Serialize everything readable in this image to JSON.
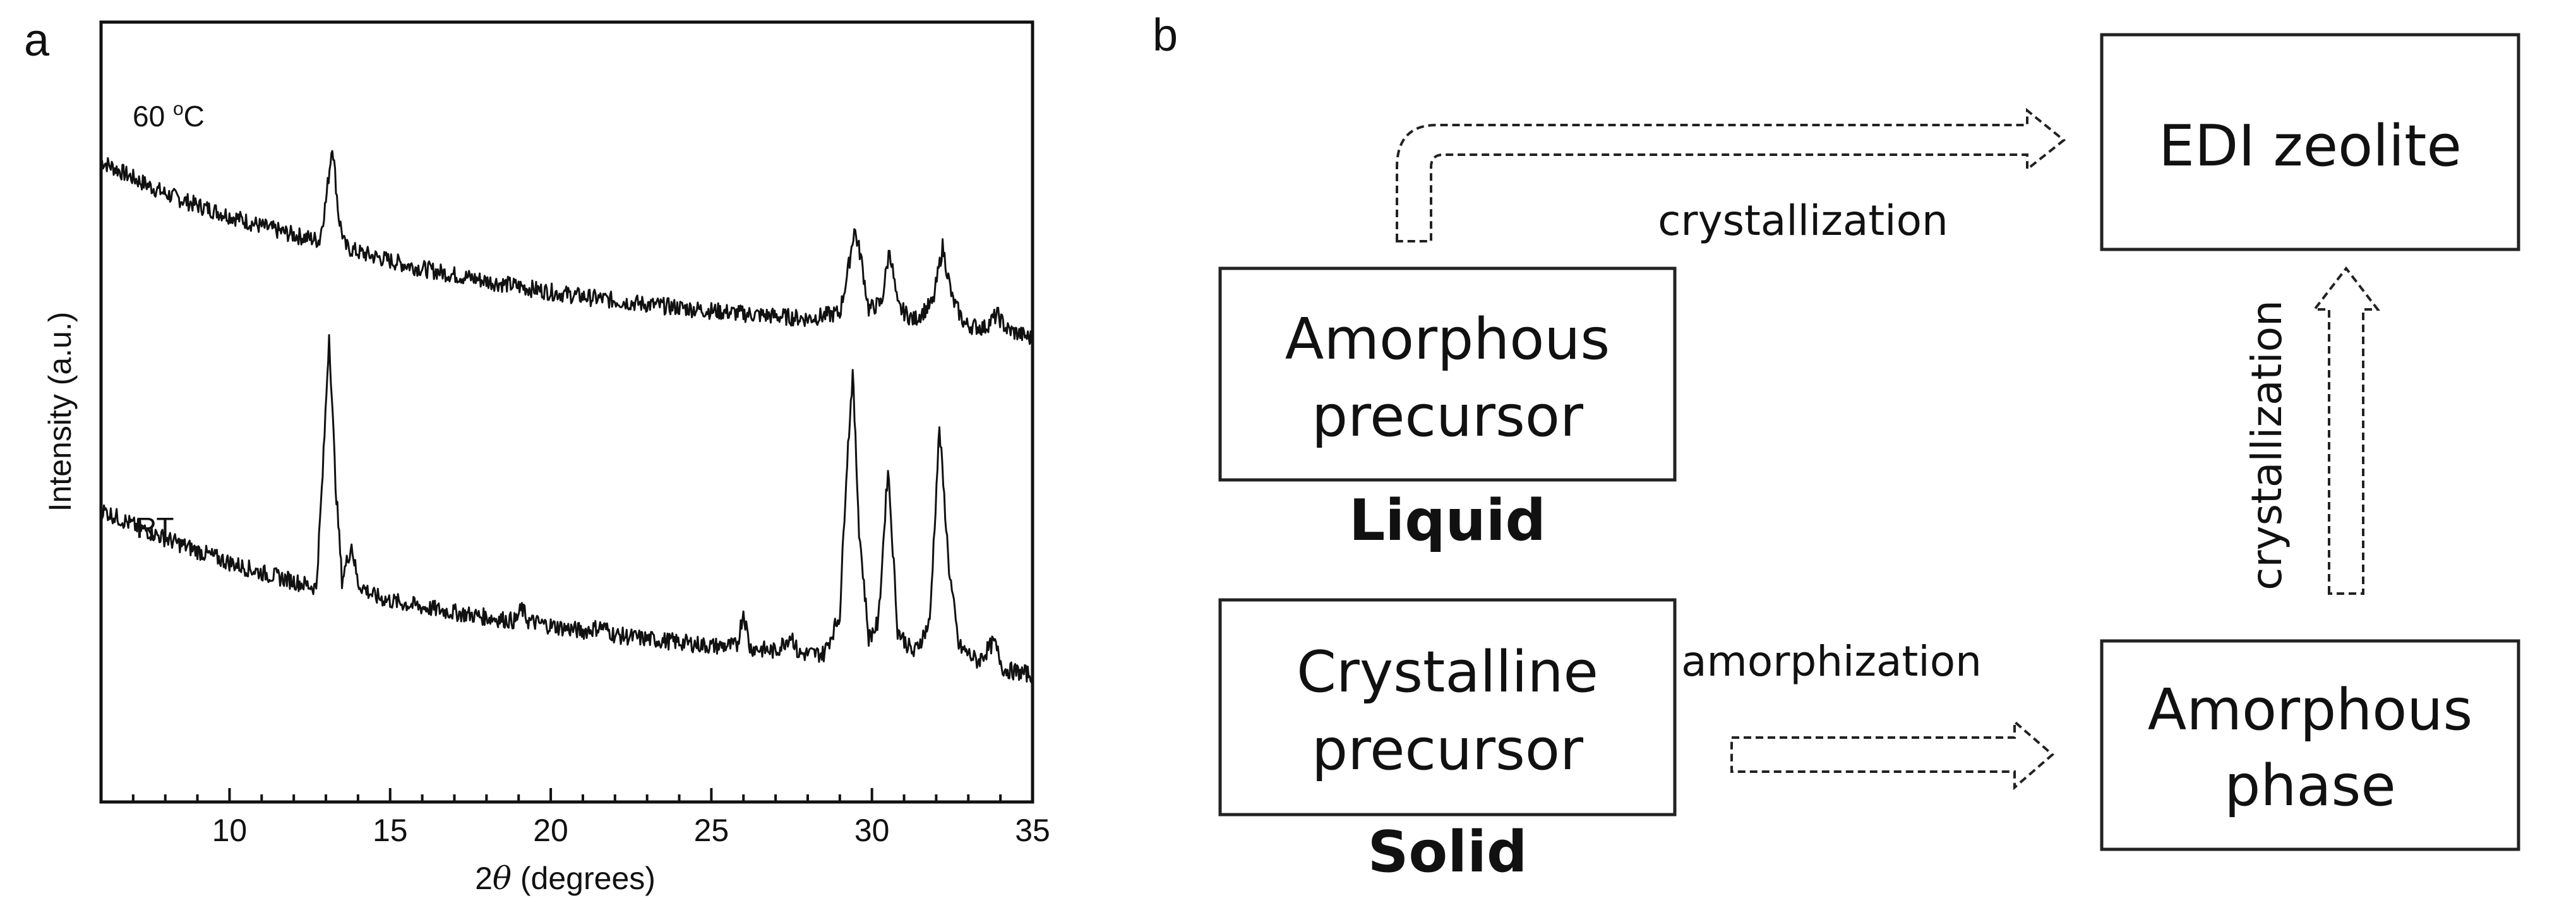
{
  "panels": {
    "a_letter": "a",
    "b_letter": "b"
  },
  "chart_data": {
    "type": "line",
    "title": "",
    "xlabel_prefix": "2",
    "xlabel_theta": "θ",
    "xlabel_suffix": " (degrees)",
    "ylabel": "Intensity (a.u.)",
    "xlim": [
      6,
      35
    ],
    "x_ticks": [
      10,
      15,
      20,
      25,
      30,
      35
    ],
    "y_ticks": [],
    "ylim": [
      0,
      1
    ],
    "series": [
      {
        "name": "60 °C",
        "label_main": "60 ",
        "label_sup": "o",
        "label_unit": "C",
        "points": [
          [
            6,
            0.822
          ],
          [
            7,
            0.8
          ],
          [
            8,
            0.78
          ],
          [
            9,
            0.765
          ],
          [
            10,
            0.752
          ],
          [
            11,
            0.738
          ],
          [
            12,
            0.727
          ],
          [
            12.8,
            0.72
          ],
          [
            13.0,
            0.77
          ],
          [
            13.2,
            0.845
          ],
          [
            13.4,
            0.75
          ],
          [
            13.6,
            0.712
          ],
          [
            14,
            0.705
          ],
          [
            15,
            0.694
          ],
          [
            16,
            0.684
          ],
          [
            17,
            0.676
          ],
          [
            18,
            0.668
          ],
          [
            19,
            0.661
          ],
          [
            20,
            0.654
          ],
          [
            21,
            0.648
          ],
          [
            22,
            0.643
          ],
          [
            23,
            0.638
          ],
          [
            24,
            0.634
          ],
          [
            25,
            0.63
          ],
          [
            26,
            0.626
          ],
          [
            27,
            0.623
          ],
          [
            28,
            0.62
          ],
          [
            29,
            0.627
          ],
          [
            29.25,
            0.68
          ],
          [
            29.45,
            0.735
          ],
          [
            29.65,
            0.7
          ],
          [
            29.9,
            0.632
          ],
          [
            30.3,
            0.64
          ],
          [
            30.55,
            0.71
          ],
          [
            30.8,
            0.635
          ],
          [
            31.3,
            0.618
          ],
          [
            31.9,
            0.64
          ],
          [
            32.2,
            0.712
          ],
          [
            32.5,
            0.645
          ],
          [
            32.9,
            0.612
          ],
          [
            33.5,
            0.608
          ],
          [
            33.9,
            0.625
          ],
          [
            34.2,
            0.606
          ],
          [
            35,
            0.594
          ]
        ]
      },
      {
        "name": "RT",
        "label_main": "RT",
        "label_sup": "",
        "label_unit": "",
        "points": [
          [
            6,
            0.375
          ],
          [
            7,
            0.355
          ],
          [
            8,
            0.338
          ],
          [
            9,
            0.322
          ],
          [
            10,
            0.307
          ],
          [
            11,
            0.294
          ],
          [
            12,
            0.283
          ],
          [
            12.7,
            0.275
          ],
          [
            12.9,
            0.42
          ],
          [
            13.1,
            0.6
          ],
          [
            13.3,
            0.41
          ],
          [
            13.5,
            0.285
          ],
          [
            13.8,
            0.33
          ],
          [
            14.0,
            0.28
          ],
          [
            14.5,
            0.264
          ],
          [
            15,
            0.258
          ],
          [
            16,
            0.25
          ],
          [
            17,
            0.243
          ],
          [
            18,
            0.237
          ],
          [
            18.9,
            0.232
          ],
          [
            19.1,
            0.248
          ],
          [
            19.3,
            0.232
          ],
          [
            20,
            0.226
          ],
          [
            21,
            0.219
          ],
          [
            21.6,
            0.225
          ],
          [
            22,
            0.214
          ],
          [
            23,
            0.209
          ],
          [
            24,
            0.205
          ],
          [
            25,
            0.2
          ],
          [
            25.8,
            0.2
          ],
          [
            26.0,
            0.245
          ],
          [
            26.2,
            0.198
          ],
          [
            27,
            0.193
          ],
          [
            27.5,
            0.215
          ],
          [
            27.7,
            0.19
          ],
          [
            28.5,
            0.19
          ],
          [
            29.0,
            0.24
          ],
          [
            29.2,
            0.42
          ],
          [
            29.4,
            0.55
          ],
          [
            29.6,
            0.35
          ],
          [
            29.9,
            0.21
          ],
          [
            30.2,
            0.23
          ],
          [
            30.5,
            0.43
          ],
          [
            30.8,
            0.22
          ],
          [
            31.3,
            0.19
          ],
          [
            31.8,
            0.23
          ],
          [
            32.1,
            0.48
          ],
          [
            32.4,
            0.3
          ],
          [
            32.7,
            0.2
          ],
          [
            33.3,
            0.18
          ],
          [
            33.8,
            0.205
          ],
          [
            34.1,
            0.17
          ],
          [
            35,
            0.163
          ]
        ]
      }
    ]
  },
  "diagram": {
    "boxes": {
      "amorphous_precursor": [
        "Amorphous",
        "precursor"
      ],
      "crystalline_precursor": [
        "Crystalline",
        "precursor"
      ],
      "edi_zeolite": [
        "EDI zeolite"
      ],
      "amorphous_phase": [
        "Amorphous",
        "phase"
      ]
    },
    "states": {
      "liquid": "Liquid",
      "solid": "Solid"
    },
    "arrows": {
      "top": "crystallization",
      "right": "crystallization",
      "bottom": "amorphization"
    }
  }
}
